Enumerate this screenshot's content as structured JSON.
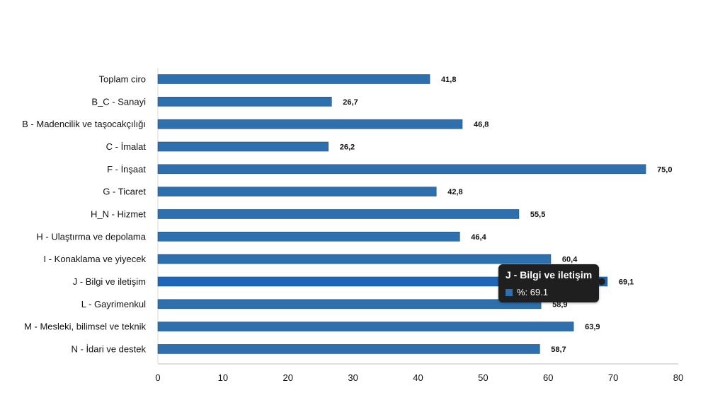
{
  "chart_data": {
    "type": "bar",
    "orientation": "horizontal",
    "categories": [
      "Toplam ciro",
      "B_C - Sanayi",
      "B - Madencilik ve taşocakçılığı",
      "C - İmalat",
      "F - İnşaat",
      "G - Ticaret",
      "H_N - Hizmet",
      "H - Ulaştırma ve depolama",
      "I - Konaklama ve yiyecek",
      "J - Bilgi ve iletişim",
      "L - Gayrimenkul",
      "M - Mesleki, bilimsel ve teknik",
      "N - İdari ve destek"
    ],
    "values": [
      41.8,
      26.7,
      46.8,
      26.2,
      75.0,
      42.8,
      55.5,
      46.4,
      60.4,
      69.1,
      58.9,
      63.9,
      58.7
    ],
    "value_labels": [
      "41,8",
      "26,7",
      "46,8",
      "26,2",
      "75,0",
      "42,8",
      "55,5",
      "46,4",
      "60,4",
      "69,1",
      "58,9",
      "63,9",
      "58,7"
    ],
    "xlim": [
      0,
      80
    ],
    "xticks": [
      "0",
      "10",
      "20",
      "30",
      "40",
      "50",
      "60",
      "70",
      "80"
    ],
    "grid": false,
    "legend": "none",
    "bar_color": "#2e6fad",
    "highlight_color": "#1f66b8",
    "highlight_index": 9
  },
  "tooltip": {
    "title": "J - Bilgi ve iletişim",
    "value_text": "%: 69.1",
    "swatch_color": "#2e6fad"
  }
}
